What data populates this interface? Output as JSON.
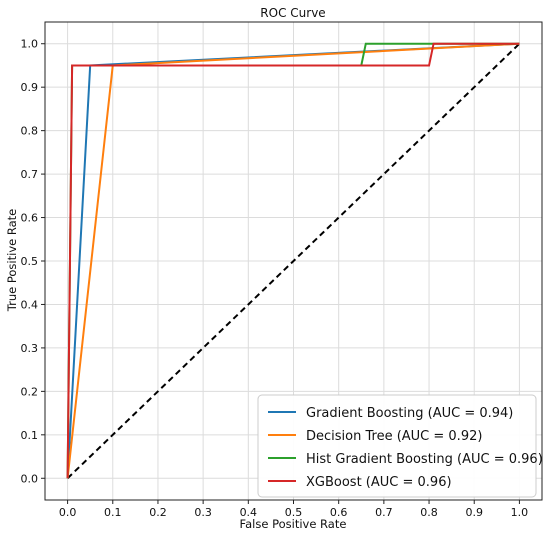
{
  "chart_data": {
    "type": "line",
    "title": "ROC Curve",
    "xlabel": "False Positive Rate",
    "ylabel": "True Positive Rate",
    "xlim": [
      -0.05,
      1.05
    ],
    "ylim": [
      -0.05,
      1.05
    ],
    "xticks": [
      "0.0",
      "0.1",
      "0.2",
      "0.3",
      "0.4",
      "0.5",
      "0.6",
      "0.7",
      "0.8",
      "0.9",
      "1.0"
    ],
    "yticks": [
      "0.0",
      "0.1",
      "0.2",
      "0.3",
      "0.4",
      "0.5",
      "0.6",
      "0.7",
      "0.8",
      "0.9",
      "1.0"
    ],
    "grid": true,
    "legend_position": "lower-right",
    "series": [
      {
        "name": "Gradient Boosting (AUC = 0.94)",
        "color": "#1f77b4",
        "x": [
          0.0,
          0.05,
          0.05,
          1.0
        ],
        "y": [
          0.0,
          0.95,
          0.95,
          1.0
        ]
      },
      {
        "name": "Decision Tree (AUC = 0.92)",
        "color": "#ff7f0e",
        "x": [
          0.0,
          0.1,
          1.0
        ],
        "y": [
          0.0,
          0.95,
          1.0
        ]
      },
      {
        "name": "Hist Gradient Boosting (AUC = 0.96)",
        "color": "#2ca02c",
        "x": [
          0.0,
          0.01,
          0.65,
          0.66,
          1.0
        ],
        "y": [
          0.0,
          0.95,
          0.95,
          1.0,
          1.0
        ]
      },
      {
        "name": "XGBoost (AUC = 0.96)",
        "color": "#d62728",
        "x": [
          0.0,
          0.01,
          0.8,
          0.81,
          1.0
        ],
        "y": [
          0.0,
          0.95,
          0.95,
          1.0,
          1.0
        ]
      }
    ],
    "reference_line": {
      "style": "dashed",
      "color": "#000000",
      "x": [
        0.0,
        1.0
      ],
      "y": [
        0.0,
        1.0
      ]
    }
  }
}
